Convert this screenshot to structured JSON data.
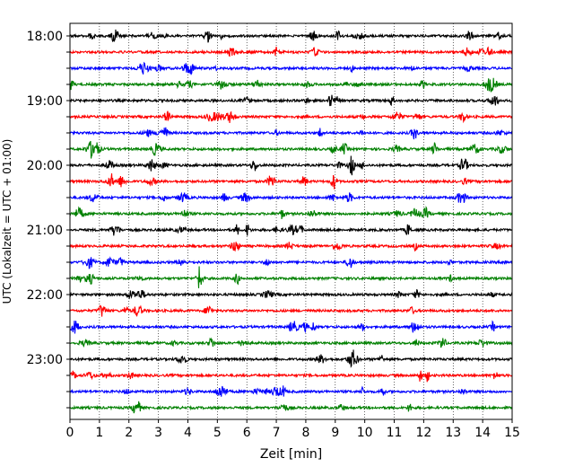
{
  "chart_data": {
    "type": "line",
    "title": "",
    "xlabel": "Zeit  [min]",
    "ylabel": "UTC (Lokalzeit = UTC + 01:00)",
    "xlim": [
      0,
      15
    ],
    "x_ticks": [
      "0",
      "1",
      "2",
      "3",
      "4",
      "5",
      "6",
      "7",
      "8",
      "9",
      "10",
      "11",
      "12",
      "13",
      "14",
      "15"
    ],
    "y_tick_labels": [
      "18:00",
      "19:00",
      "20:00",
      "21:00",
      "22:00",
      "23:00"
    ],
    "grid": "vertical dotted at each minute",
    "legend": "none",
    "trace_interval_minutes": 15,
    "series": [
      {
        "start": "18:00",
        "color": "#000000"
      },
      {
        "start": "18:15",
        "color": "#ff0000"
      },
      {
        "start": "18:30",
        "color": "#0000ff"
      },
      {
        "start": "18:45",
        "color": "#008000"
      },
      {
        "start": "19:00",
        "color": "#000000"
      },
      {
        "start": "19:15",
        "color": "#ff0000"
      },
      {
        "start": "19:30",
        "color": "#0000ff"
      },
      {
        "start": "19:45",
        "color": "#008000"
      },
      {
        "start": "20:00",
        "color": "#000000"
      },
      {
        "start": "20:15",
        "color": "#ff0000"
      },
      {
        "start": "20:30",
        "color": "#0000ff"
      },
      {
        "start": "20:45",
        "color": "#008000"
      },
      {
        "start": "21:00",
        "color": "#000000"
      },
      {
        "start": "21:15",
        "color": "#ff0000"
      },
      {
        "start": "21:30",
        "color": "#0000ff"
      },
      {
        "start": "21:45",
        "color": "#008000"
      },
      {
        "start": "22:00",
        "color": "#000000"
      },
      {
        "start": "22:15",
        "color": "#ff0000"
      },
      {
        "start": "22:30",
        "color": "#0000ff"
      },
      {
        "start": "22:45",
        "color": "#008000"
      },
      {
        "start": "23:00",
        "color": "#000000"
      },
      {
        "start": "23:15",
        "color": "#ff0000"
      },
      {
        "start": "23:30",
        "color": "#0000ff"
      },
      {
        "start": "23:45",
        "color": "#008000"
      }
    ]
  }
}
